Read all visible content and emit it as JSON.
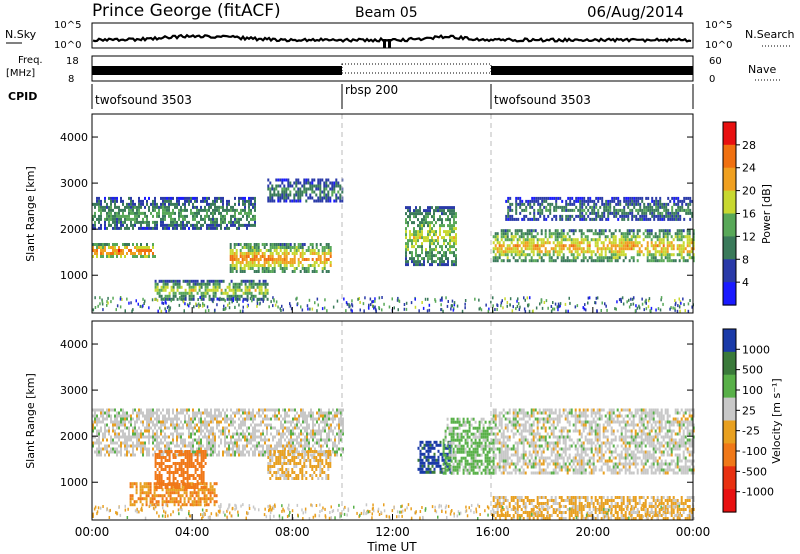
{
  "header": {
    "title": "Prince George (fitACF)",
    "beam": "Beam 05",
    "date": "06/Aug/2014"
  },
  "noise_panel": {
    "left_label": "N.Sky",
    "left_ticks": [
      "10^5",
      "10^0"
    ],
    "right_label": "N.Search",
    "right_ticks": [
      "10^5",
      "10^0"
    ]
  },
  "freq_panel": {
    "left_label_1": "Freq.",
    "left_label_2": "[MHz]",
    "left_ticks": [
      "18",
      "8"
    ],
    "right_label": "Nave",
    "right_ticks": [
      "60",
      "0"
    ]
  },
  "cpid_panel": {
    "label": "CPID",
    "segments": [
      "twofsound 3503",
      "rbsp 200",
      "twofsound 3503"
    ]
  },
  "power_panel": {
    "ylabel": "Slant Range [km]",
    "yticks": [
      "1000",
      "2000",
      "3000",
      "4000"
    ],
    "colorbar_label": "Power [dB]",
    "colorbar_ticks": [
      "4",
      "8",
      "12",
      "16",
      "20",
      "24",
      "28"
    ]
  },
  "velocity_panel": {
    "ylabel": "Slant Range [km]",
    "yticks": [
      "1000",
      "2000",
      "3000",
      "4000"
    ],
    "colorbar_label": "Velocity [m s⁻¹]",
    "colorbar_ticks": [
      "1000",
      "500",
      "100",
      "25",
      "-25",
      "-100",
      "-500",
      "-1000"
    ]
  },
  "xaxis": {
    "label": "Time UT",
    "ticks": [
      "00:00",
      "04:00",
      "08:00",
      "12:00",
      "16:00",
      "20:00",
      "00:00"
    ]
  },
  "colors": {
    "power_scale": [
      "#1a1aff",
      "#2a3aa8",
      "#3a7a5a",
      "#58a858",
      "#c8d830",
      "#f0a020",
      "#f07010",
      "#e81010"
    ],
    "velocity_scale": [
      "#1a3aa8",
      "#3a7a3a",
      "#58b048",
      "#c8c8c8",
      "#e8a020",
      "#f07818",
      "#e83010",
      "#e81010"
    ]
  },
  "chart_data": [
    {
      "type": "heatmap",
      "title": "Prince George (fitACF)",
      "xlabel": "Time UT",
      "ylabel": "Slant Range [km]",
      "xlim": [
        0,
        24
      ],
      "ylim": [
        180,
        4500
      ],
      "x_units": "hours UT",
      "colorbar": {
        "label": "Power [dB]",
        "range": [
          0,
          30
        ]
      },
      "echo_bands": [
        {
          "t_start": 0,
          "t_end": 2.5,
          "range_km": [
            1400,
            1700
          ],
          "power_db": 24
        },
        {
          "t_start": 0,
          "t_end": 6.5,
          "range_km": [
            2000,
            2700
          ],
          "power_db": 12
        },
        {
          "t_start": 2.5,
          "t_end": 7.0,
          "range_km": [
            500,
            900
          ],
          "power_db": 16
        },
        {
          "t_start": 5.5,
          "t_end": 9.5,
          "range_km": [
            1100,
            1700
          ],
          "power_db": 22
        },
        {
          "t_start": 7.0,
          "t_end": 10.0,
          "range_km": [
            2600,
            3100
          ],
          "power_db": 10
        },
        {
          "t_start": 12.5,
          "t_end": 14.5,
          "range_km": [
            1200,
            2500
          ],
          "power_db": 16
        },
        {
          "t_start": 16.0,
          "t_end": 24.0,
          "range_km": [
            1300,
            2000
          ],
          "power_db": 20
        },
        {
          "t_start": 16.5,
          "t_end": 24.0,
          "range_km": [
            2200,
            2700
          ],
          "power_db": 10
        }
      ]
    },
    {
      "type": "heatmap",
      "xlabel": "Time UT",
      "ylabel": "Slant Range [km]",
      "xlim": [
        0,
        24
      ],
      "ylim": [
        180,
        4500
      ],
      "x_units": "hours UT",
      "colorbar": {
        "label": "Velocity [m s⁻¹]",
        "range": [
          -1000,
          1000
        ]
      },
      "echo_bands": [
        {
          "t_start": 0,
          "t_end": 10.0,
          "range_km": [
            1600,
            2600
          ],
          "velocity_ms": 0
        },
        {
          "t_start": 1.5,
          "t_end": 5.0,
          "range_km": [
            500,
            1000
          ],
          "velocity_ms": -300
        },
        {
          "t_start": 2.5,
          "t_end": 4.5,
          "range_km": [
            900,
            1700
          ],
          "velocity_ms": -500
        },
        {
          "t_start": 7.0,
          "t_end": 9.5,
          "range_km": [
            1100,
            1700
          ],
          "velocity_ms": -100
        },
        {
          "t_start": 13.0,
          "t_end": 14.3,
          "range_km": [
            1200,
            1900
          ],
          "velocity_ms": 800
        },
        {
          "t_start": 14.0,
          "t_end": 16.0,
          "range_km": [
            1200,
            2400
          ],
          "velocity_ms": 100
        },
        {
          "t_start": 16.0,
          "t_end": 24.0,
          "range_km": [
            1200,
            2600
          ],
          "velocity_ms": 0
        },
        {
          "t_start": 16.0,
          "t_end": 24.0,
          "range_km": [
            200,
            700
          ],
          "velocity_ms": -100
        }
      ]
    }
  ]
}
